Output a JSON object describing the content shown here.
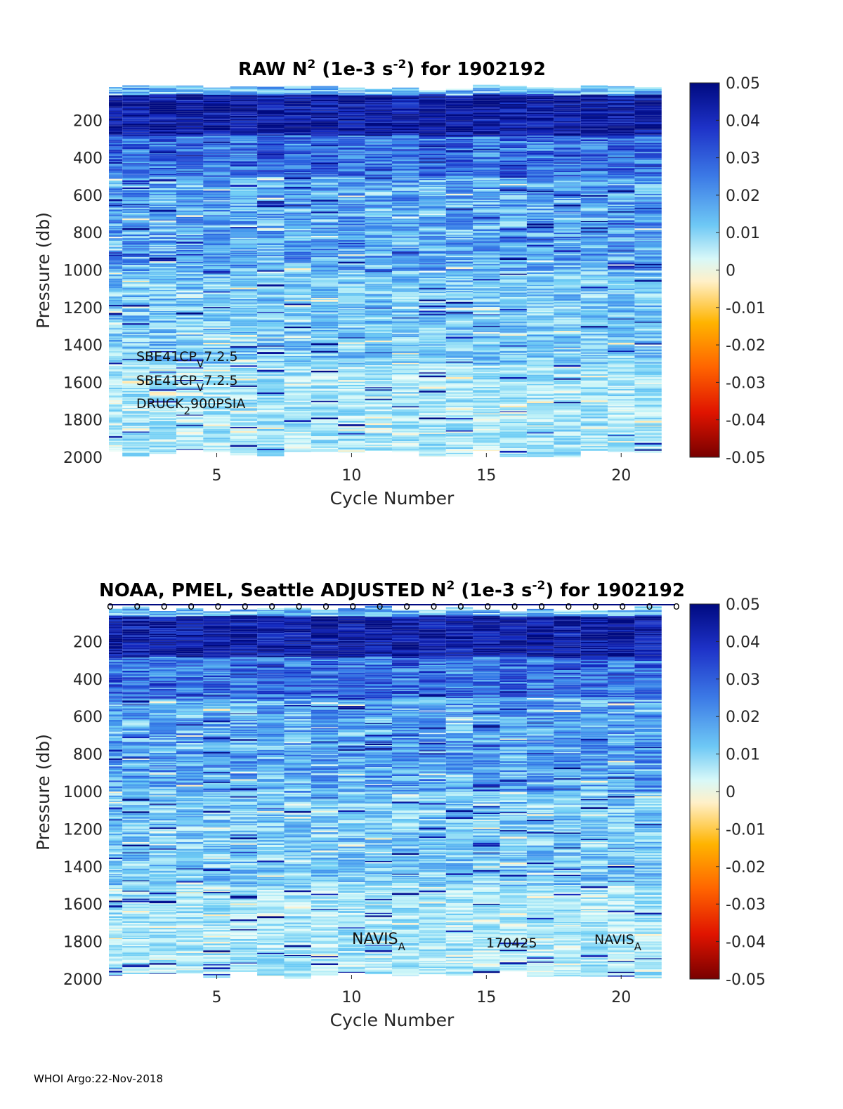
{
  "chart_data": [
    {
      "type": "heatmap",
      "title": "RAW N",
      "title_sup1": "2",
      "title_mid": " (1e-3 s",
      "title_sup2": "-2",
      "title_tail": ") for 1902192",
      "xlabel": "Cycle Number",
      "ylabel": "Pressure (db)",
      "xlim": [
        1,
        22
      ],
      "ylim": [
        2000,
        0
      ],
      "xticks": [
        5,
        10,
        15,
        20
      ],
      "yticks": [
        200,
        400,
        600,
        800,
        1000,
        1200,
        1400,
        1600,
        1800,
        2000
      ],
      "clim": [
        -0.05,
        0.05
      ],
      "colorbar_ticks": [
        "0.05",
        "0.04",
        "0.03",
        "0.02",
        "0.01",
        "0",
        "-0.01",
        "-0.02",
        "-0.03",
        "-0.04",
        "-0.05"
      ],
      "cycles": 21,
      "pressure_range": [
        0,
        2000
      ],
      "annotations": [
        {
          "base": "SBE41CP",
          "sub": "V",
          "tail": "7.2.5"
        },
        {
          "base": "SBE41CP",
          "sub": "V",
          "tail": "7.2.5"
        },
        {
          "base": "DRUCK",
          "sub": "2",
          "tail": "900PSIA"
        }
      ]
    },
    {
      "type": "heatmap",
      "title": "NOAA, PMEL, Seattle  ADJUSTED N",
      "title_sup1": "2",
      "title_mid": " (1e-3 s",
      "title_sup2": "-2",
      "title_tail": ") for 1902192",
      "xlabel": "Cycle Number",
      "ylabel": "Pressure (db)",
      "xlim": [
        1,
        22
      ],
      "ylim": [
        2000,
        0
      ],
      "xticks": [
        5,
        10,
        15,
        20
      ],
      "yticks": [
        200,
        400,
        600,
        800,
        1000,
        1200,
        1400,
        1600,
        1800,
        2000
      ],
      "clim": [
        -0.05,
        0.05
      ],
      "colorbar_ticks": [
        "0.05",
        "0.04",
        "0.03",
        "0.02",
        "0.01",
        "0",
        "-0.01",
        "-0.02",
        "-0.03",
        "-0.04",
        "-0.05"
      ],
      "cycles": 21,
      "pressure_range": [
        0,
        2000
      ],
      "qc_marker": "o",
      "annotations": [
        {
          "base": "NAVIS",
          "sub": "A",
          "tail": ""
        },
        {
          "base": "170425",
          "sub": "",
          "tail": ""
        },
        {
          "base": "NAVIS",
          "sub": "A",
          "tail": ""
        }
      ]
    }
  ],
  "footer": "WHOI Argo:22-Nov-2018",
  "colors": {
    "deep_blue": "#000a80",
    "blue": "#1e46d2",
    "mid_blue": "#3c8cf0",
    "light_cyan": "#8ce6f5",
    "pale": "#e0fbf8",
    "cream": "#fff5dc",
    "orange": "#ff9600",
    "red": "#e61e00",
    "dark_red": "#780000"
  }
}
